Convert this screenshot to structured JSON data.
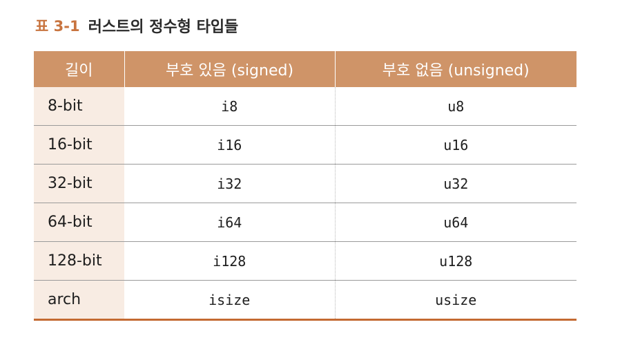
{
  "caption": {
    "number": "표 3-1",
    "title": "러스트의 정수형 타입들"
  },
  "table": {
    "headers": [
      "길이",
      "부호 있음 (signed)",
      "부호 없음 (unsigned)"
    ],
    "rows": [
      {
        "length": "8-bit",
        "signed": "i8",
        "unsigned": "u8"
      },
      {
        "length": "16-bit",
        "signed": "i16",
        "unsigned": "u16"
      },
      {
        "length": "32-bit",
        "signed": "i32",
        "unsigned": "u32"
      },
      {
        "length": "64-bit",
        "signed": "i64",
        "unsigned": "u64"
      },
      {
        "length": "128-bit",
        "signed": "i128",
        "unsigned": "u128"
      },
      {
        "length": "arch",
        "signed": "isize",
        "unsigned": "usize"
      }
    ]
  },
  "colors": {
    "header_bg": "#cf9468",
    "first_col_bg": "#f8ece3",
    "caption_accent": "#c8743f",
    "bottom_rule": "#c46a32"
  }
}
